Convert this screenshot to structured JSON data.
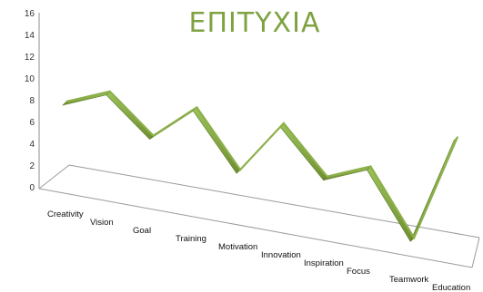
{
  "chart_data": {
    "type": "line",
    "title": "ΕΠΙΤΥΧΙΑ",
    "xlabel": "",
    "ylabel": "",
    "ylim": [
      0,
      16
    ],
    "yticks": [
      0,
      2,
      4,
      6,
      8,
      10,
      12,
      14,
      16
    ],
    "categories": [
      "Creativity",
      "Vision",
      "Goal",
      "Training",
      "Motivation",
      "Innovation",
      "Inspiration",
      "Focus",
      "Teamwork",
      "Education"
    ],
    "series": [
      {
        "values": [
          8,
          10,
          6,
          10,
          4,
          10,
          5,
          7,
          0,
          12
        ],
        "color": "#8db04a"
      }
    ],
    "grid": false,
    "legend": "none",
    "style": "3d-ribbon"
  }
}
